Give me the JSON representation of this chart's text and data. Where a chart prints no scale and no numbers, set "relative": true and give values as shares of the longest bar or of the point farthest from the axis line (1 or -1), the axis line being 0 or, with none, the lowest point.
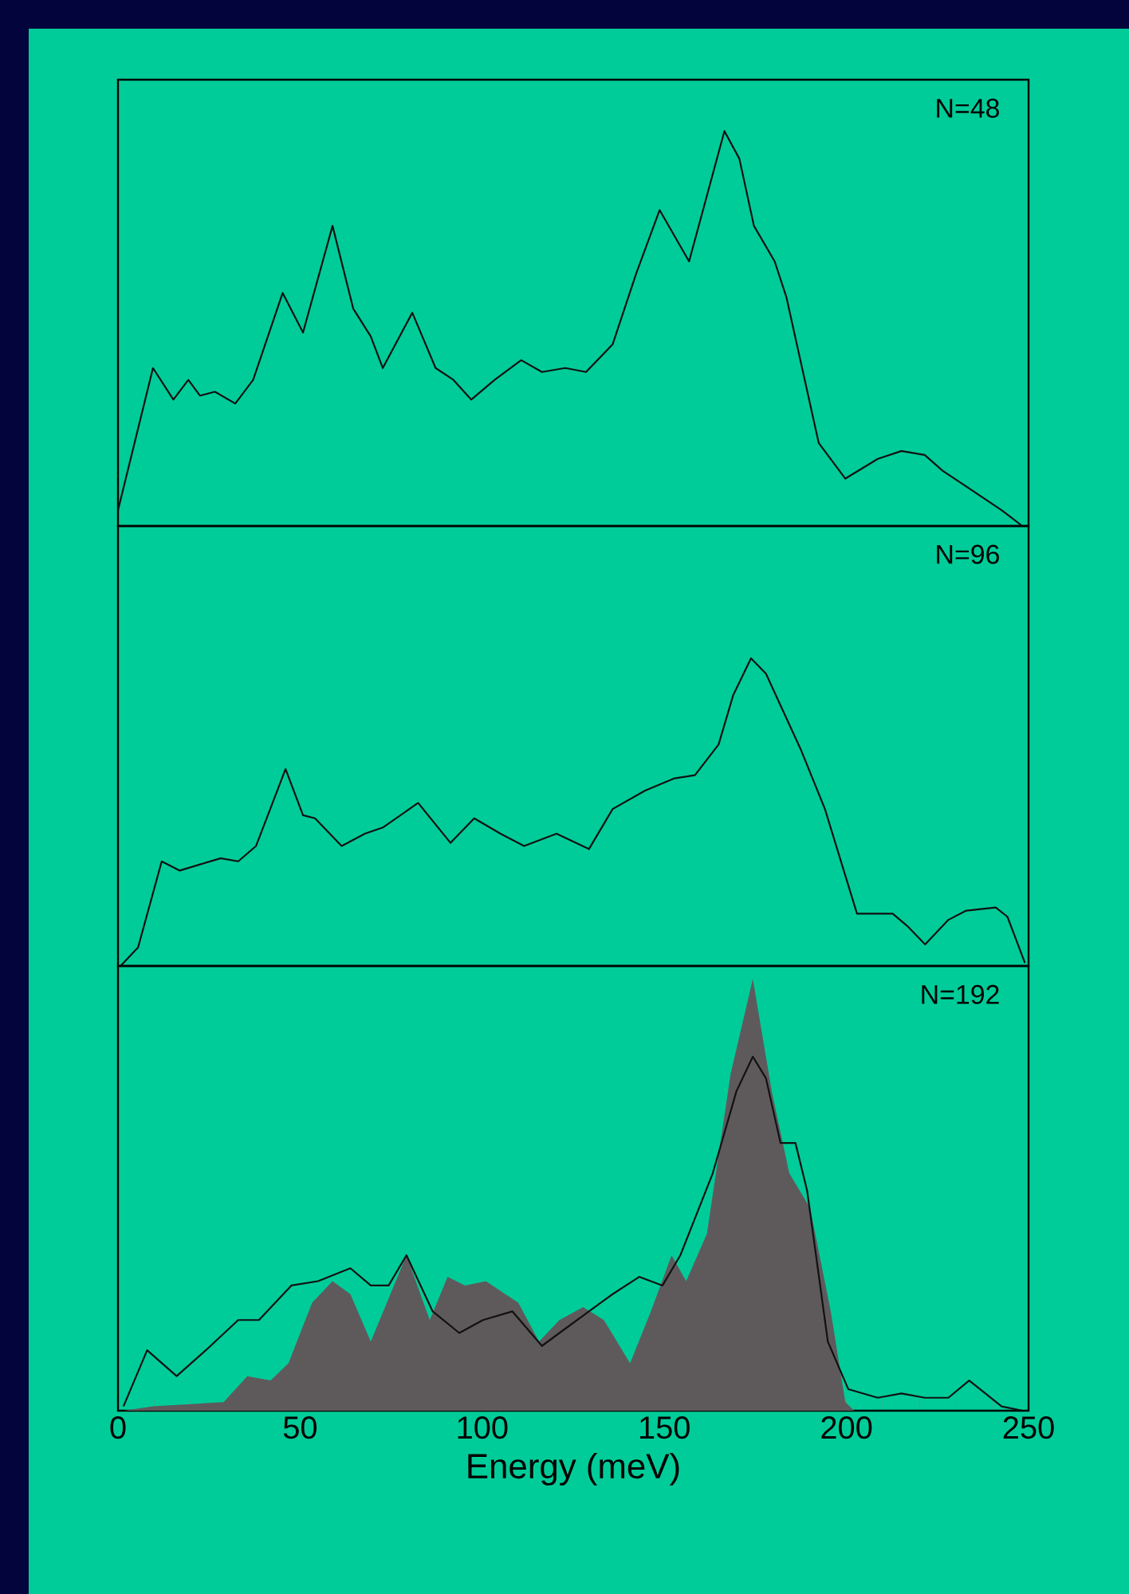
{
  "chart_data": [
    {
      "type": "line",
      "relative": true,
      "xlim": [
        0,
        250
      ],
      "tick_labels": false,
      "annotations": [
        "N=48"
      ],
      "series": [
        {
          "color": "#111111",
          "x": [
            0,
            9.6,
            15.2,
            19.3,
            22.5,
            26.6,
            32.2,
            37.1,
            45.2,
            50.8,
            58.9,
            64.6,
            69.4,
            72.7,
            80.8,
            87.2,
            92.1,
            97,
            103.4,
            110.7,
            116.4,
            122.8,
            128.5,
            135.8,
            142.3,
            148.7,
            156.8,
            166.5,
            170.6,
            174.6,
            180.3,
            183.5,
            192.4,
            199.7,
            208.6,
            215.1,
            221.5,
            226.4,
            232.9,
            242.6,
            248.3
          ],
          "values": [
            0.04,
            0.4,
            0.32,
            0.37,
            0.33,
            0.34,
            0.31,
            0.37,
            0.59,
            0.49,
            0.76,
            0.55,
            0.48,
            0.4,
            0.54,
            0.4,
            0.37,
            0.32,
            0.37,
            0.42,
            0.39,
            0.4,
            0.39,
            0.46,
            0.64,
            0.8,
            0.67,
            1.0,
            0.93,
            0.76,
            0.67,
            0.58,
            0.21,
            0.12,
            0.17,
            0.19,
            0.18,
            0.14,
            0.1,
            0.04,
            0.0
          ]
        }
      ]
    },
    {
      "type": "line",
      "relative": true,
      "xlim": [
        0,
        250
      ],
      "tick_labels": false,
      "annotations": [
        "N=96"
      ],
      "series": [
        {
          "color": "#111111",
          "x": [
            0.7,
            5.5,
            12,
            16.9,
            22.5,
            28.2,
            33,
            37.9,
            46,
            50.8,
            54.1,
            61.4,
            67.8,
            72.7,
            82.4,
            91.3,
            97.8,
            105,
            111.5,
            120.4,
            129.3,
            135.8,
            144.7,
            152.8,
            158.4,
            164.9,
            168.9,
            173.8,
            177.9,
            187.6,
            194.1,
            202.9,
            212.7,
            216.7,
            221.6,
            228,
            232.9,
            241,
            244.2,
            249
          ],
          "values": [
            0,
            0.06,
            0.34,
            0.31,
            0.33,
            0.35,
            0.34,
            0.39,
            0.64,
            0.49,
            0.48,
            0.39,
            0.43,
            0.45,
            0.53,
            0.4,
            0.48,
            0.43,
            0.39,
            0.43,
            0.38,
            0.51,
            0.57,
            0.61,
            0.62,
            0.72,
            0.88,
            1.0,
            0.95,
            0.7,
            0.51,
            0.17,
            0.17,
            0.13,
            0.07,
            0.15,
            0.18,
            0.19,
            0.16,
            0.01
          ]
        }
      ]
    },
    {
      "type": "line",
      "relative": true,
      "xlim": [
        0,
        250
      ],
      "tick_labels": "x",
      "xlabel": "Energy (meV)",
      "annotations": [
        "N=192"
      ],
      "xticks": [
        0,
        {
          "value": 10,
          "label": null
        },
        {
          "value": 20,
          "label": null
        },
        {
          "value": 30,
          "label": null
        },
        {
          "value": 40,
          "label": null
        },
        50,
        {
          "value": 60,
          "label": null
        },
        {
          "value": 70,
          "label": null
        },
        {
          "value": 80,
          "label": null
        },
        {
          "value": 90,
          "label": null
        },
        100,
        {
          "value": 110,
          "label": null
        },
        {
          "value": 120,
          "label": null
        },
        {
          "value": 130,
          "label": null
        },
        {
          "value": 140,
          "label": null
        },
        150,
        {
          "value": 160,
          "label": null
        },
        {
          "value": 170,
          "label": null
        },
        {
          "value": 180,
          "label": null
        },
        {
          "value": 190,
          "label": null
        },
        200,
        {
          "value": 210,
          "label": null
        },
        {
          "value": 220,
          "label": null
        },
        {
          "value": 230,
          "label": null
        },
        {
          "value": 240,
          "label": null
        },
        250
      ],
      "series": [
        {
          "type": "area",
          "color": "#5e5a5c",
          "x": [
            1.5,
            9.6,
            29,
            35.5,
            41.9,
            46.8,
            53.3,
            58.9,
            63.8,
            69.4,
            74.3,
            79.2,
            85.6,
            90.5,
            95.3,
            101,
            109.9,
            115.6,
            121.2,
            127.7,
            133.4,
            140.6,
            146.3,
            152,
            156,
            161.7,
            168.2,
            174.3,
            179.5,
            184.3,
            190,
            195.7,
            199.7,
            202.1
          ],
          "values": [
            0,
            0.01,
            0.02,
            0.08,
            0.07,
            0.11,
            0.25,
            0.3,
            0.27,
            0.16,
            0.26,
            0.36,
            0.21,
            0.31,
            0.29,
            0.3,
            0.25,
            0.16,
            0.21,
            0.24,
            0.21,
            0.11,
            0.23,
            0.36,
            0.3,
            0.41,
            0.78,
            1.0,
            0.74,
            0.55,
            0.47,
            0.23,
            0.02,
            0
          ]
        },
        {
          "type": "line",
          "color": "#111111",
          "x": [
            1.5,
            8,
            16.1,
            24.1,
            33,
            38.7,
            47.6,
            54.9,
            63.8,
            69.4,
            74.3,
            79.2,
            86.4,
            93.7,
            100.2,
            108.3,
            116.4,
            121.2,
            129.3,
            135.8,
            143.1,
            149.5,
            154.4,
            163.3,
            169.8,
            174.3,
            177.9,
            181.9,
            186,
            189.2,
            194.9,
            200.5,
            208.6,
            215.1,
            221.5,
            228,
            233.7,
            242.6,
            248.3
          ],
          "values": [
            0.01,
            0.14,
            0.08,
            0.14,
            0.21,
            0.21,
            0.29,
            0.3,
            0.33,
            0.29,
            0.29,
            0.36,
            0.23,
            0.18,
            0.21,
            0.23,
            0.15,
            0.18,
            0.23,
            0.27,
            0.31,
            0.29,
            0.36,
            0.55,
            0.74,
            0.82,
            0.77,
            0.62,
            0.62,
            0.51,
            0.16,
            0.05,
            0.03,
            0.04,
            0.03,
            0.03,
            0.07,
            0.01,
            0
          ]
        }
      ]
    }
  ]
}
